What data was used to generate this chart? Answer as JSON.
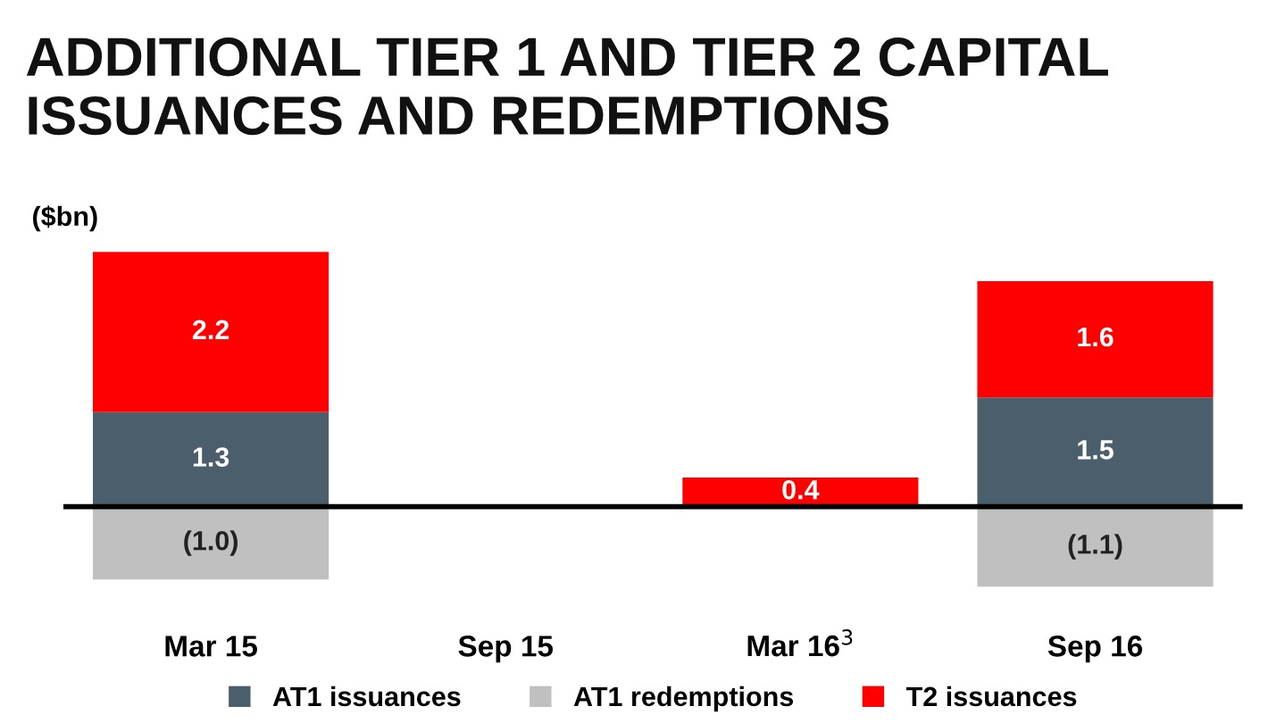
{
  "chart_data": {
    "type": "bar",
    "stacked": true,
    "title": "ADDITIONAL TIER 1 AND TIER 2 CAPITAL ISSUANCES AND REDEMPTIONS",
    "ylabel": "($bn)",
    "categories": [
      "Mar 15",
      "Sep 15",
      "Mar 16$^{3}$",
      "Sep 16"
    ],
    "series": [
      {
        "name": "AT1 issuances",
        "color": "#4a5f6b",
        "values": [
          1.3,
          null,
          null,
          1.5
        ],
        "value_labels": [
          "1.3",
          null,
          null,
          "1.5"
        ]
      },
      {
        "name": "AT1 redemptions",
        "color": "#c0c0c0",
        "values": [
          -1.0,
          null,
          null,
          -1.1
        ],
        "value_labels": [
          "(1.0)",
          null,
          null,
          "(1.1)"
        ]
      },
      {
        "name": "T2 issuances",
        "color": "#ff0000",
        "values": [
          2.2,
          null,
          0.4,
          1.6
        ],
        "value_labels": [
          "2.2",
          null,
          "0.4",
          "1.6"
        ]
      }
    ],
    "legend": "bottom",
    "grid": false,
    "tick_labels": "x"
  }
}
